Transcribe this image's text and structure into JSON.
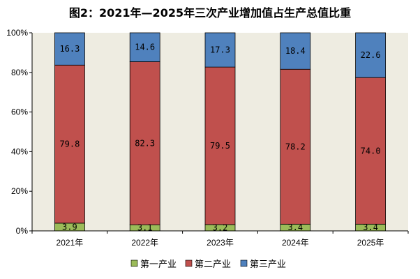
{
  "chart_data": {
    "type": "bar",
    "stacked": true,
    "percent": true,
    "title": "图2：2021年—2025年三次产业增加值占生产总值比重",
    "categories": [
      "2021年",
      "2022年",
      "2023年",
      "2024年",
      "2025年"
    ],
    "series": [
      {
        "name": "第一产业",
        "values": [
          3.9,
          3.1,
          3.2,
          3.4,
          3.4
        ],
        "labels": [
          "3.9",
          "3.1",
          "3.2",
          "3.4",
          "3.4"
        ],
        "color": "#9bbb59"
      },
      {
        "name": "第二产业",
        "values": [
          79.8,
          82.3,
          79.5,
          78.2,
          74.0
        ],
        "labels": [
          "79.8",
          "82.3",
          "79.5",
          "78.2",
          "74.0"
        ],
        "color": "#c0504d"
      },
      {
        "name": "第三产业",
        "values": [
          16.3,
          14.6,
          17.3,
          18.4,
          22.6
        ],
        "labels": [
          "16.3",
          "14.6",
          "17.3",
          "18.4",
          "22.6"
        ],
        "color": "#4f81bd"
      }
    ],
    "yticks": [
      "0%",
      "20%",
      "40%",
      "60%",
      "80%",
      "100%"
    ],
    "ylim": [
      0,
      100
    ],
    "xlabel": "",
    "ylabel": "",
    "plot_background": "#eeece1",
    "grid": false,
    "legend_position": "bottom"
  }
}
